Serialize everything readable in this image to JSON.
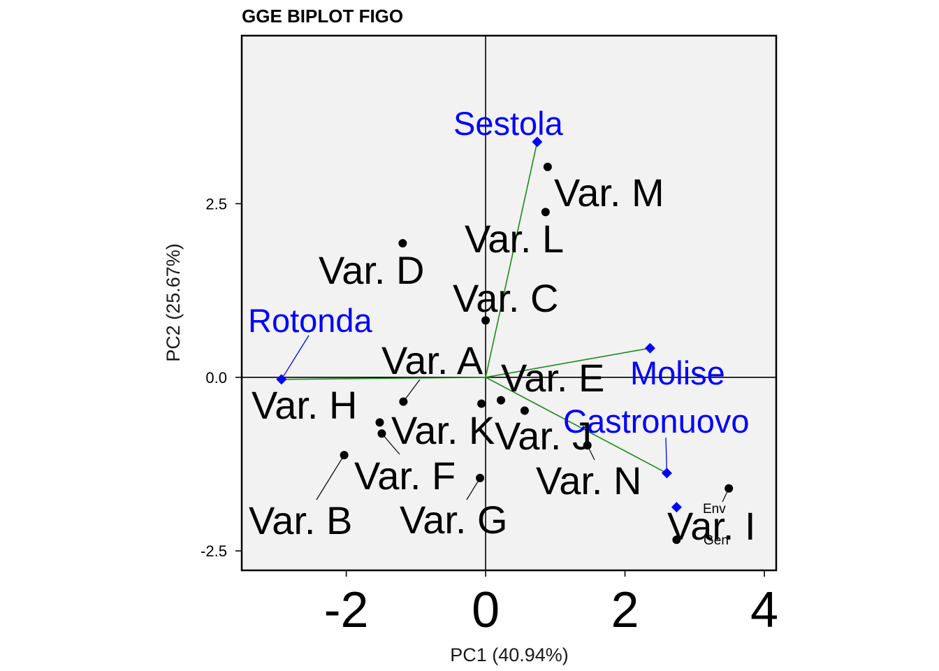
{
  "chart_data": {
    "type": "scatter",
    "title": "GGE BIPLOT FIGO",
    "xlabel": "PC1 (40.94%)",
    "ylabel": "PC2 (25.67%)",
    "xlim": [
      -3.5,
      4.17
    ],
    "ylim": [
      -2.78,
      4.92
    ],
    "xticks": [
      -2,
      0,
      2,
      4
    ],
    "yticks": [
      -2.5,
      0.0,
      2.5
    ],
    "xtick_labels": [
      "-2",
      "0",
      "2",
      "4"
    ],
    "ytick_labels": [
      "-2.5",
      "0.0",
      "2.5"
    ],
    "grid": false,
    "colors": {
      "panel": "#f2f2f2",
      "genotype": "#000000",
      "environment": "#0000ff",
      "vector": "#1a8a1a"
    },
    "genotypes": [
      {
        "name": "Var. A",
        "x": -1.18,
        "y": -0.35
      },
      {
        "name": "Var. B",
        "x": -2.03,
        "y": -1.12
      },
      {
        "name": "Var. C",
        "x": 0.0,
        "y": 0.82
      },
      {
        "name": "Var. D",
        "x": -1.19,
        "y": 1.93
      },
      {
        "name": "Var. E",
        "x": 0.22,
        "y": -0.33
      },
      {
        "name": "Var. F",
        "x": -1.49,
        "y": -0.81
      },
      {
        "name": "Var. G",
        "x": -0.08,
        "y": -1.45
      },
      {
        "name": "Var. H",
        "x": -1.52,
        "y": -0.65
      },
      {
        "name": "Var. I",
        "x": 3.49,
        "y": -1.6
      },
      {
        "name": "Var. J",
        "x": 0.56,
        "y": -0.48
      },
      {
        "name": "Var. K",
        "x": -0.06,
        "y": -0.38
      },
      {
        "name": "Var. L",
        "x": 0.86,
        "y": 2.38
      },
      {
        "name": "Var. M",
        "x": 0.89,
        "y": 3.03
      },
      {
        "name": "Var. N",
        "x": 1.46,
        "y": -0.98
      },
      {
        "name": "Gen",
        "x": 2.74,
        "y": -2.34
      }
    ],
    "environments": [
      {
        "name": "Sestola",
        "x": 0.74,
        "y": 3.39
      },
      {
        "name": "Rotonda",
        "x": -2.93,
        "y": -0.03
      },
      {
        "name": "Molise",
        "x": 2.36,
        "y": 0.42
      },
      {
        "name": "Castronuovo",
        "x": 2.6,
        "y": -1.38
      },
      {
        "name": "Env",
        "x": 2.74,
        "y": -1.87
      }
    ],
    "legend": {
      "placement": "bottom-right",
      "entries": [
        "Env",
        "Gen"
      ]
    }
  }
}
